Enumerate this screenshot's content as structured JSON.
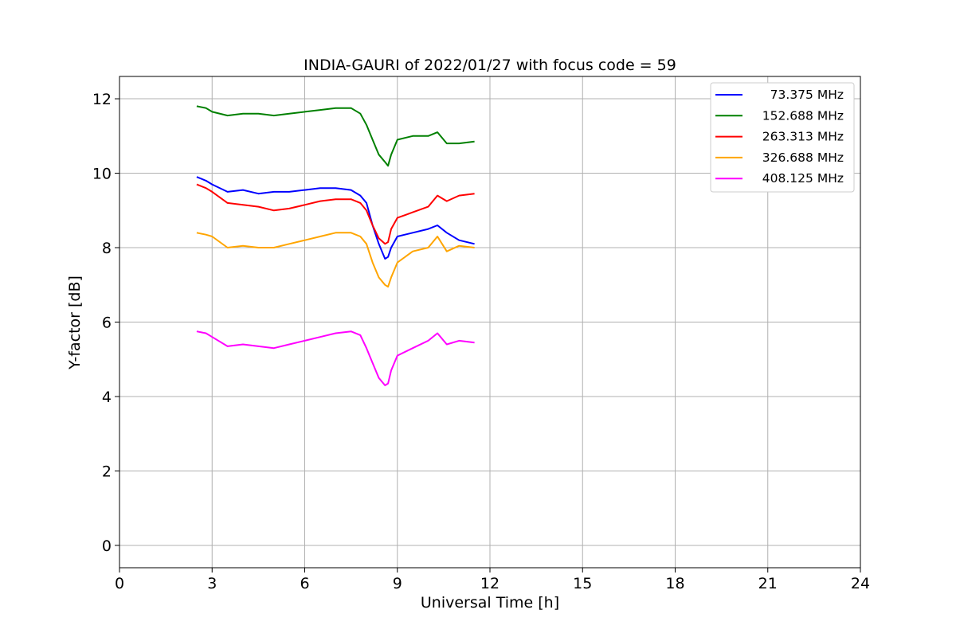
{
  "chart_data": {
    "type": "line",
    "title": "INDIA-GAURI of 2022/01/27 with focus code = 59",
    "xlabel": "Universal Time [h]",
    "ylabel": "Y-factor [dB]",
    "xlim": [
      0,
      24
    ],
    "ylim": [
      -0.6,
      12.6
    ],
    "xticks": [
      0,
      3,
      6,
      9,
      12,
      15,
      18,
      21,
      24
    ],
    "yticks": [
      0,
      2,
      4,
      6,
      8,
      10,
      12
    ],
    "grid": true,
    "legend_position": "top-right",
    "series": [
      {
        "name": "73.375 MHz",
        "color": "#0000ff",
        "x": [
          2.5,
          2.8,
          3.0,
          3.5,
          4.0,
          4.5,
          5.0,
          5.5,
          6.0,
          6.5,
          7.0,
          7.5,
          7.8,
          8.0,
          8.2,
          8.4,
          8.6,
          8.7,
          8.8,
          9.0,
          9.5,
          10.0,
          10.3,
          10.6,
          11.0,
          11.5
        ],
        "y": [
          9.9,
          9.8,
          9.7,
          9.5,
          9.55,
          9.45,
          9.5,
          9.5,
          9.55,
          9.6,
          9.6,
          9.55,
          9.4,
          9.2,
          8.6,
          8.1,
          7.7,
          7.75,
          8.0,
          8.3,
          8.4,
          8.5,
          8.6,
          8.4,
          8.2,
          8.1
        ]
      },
      {
        "name": "152.688 MHz",
        "color": "#008000",
        "x": [
          2.5,
          2.8,
          3.0,
          3.5,
          4.0,
          4.5,
          5.0,
          5.5,
          6.0,
          6.5,
          7.0,
          7.5,
          7.8,
          8.0,
          8.2,
          8.4,
          8.6,
          8.7,
          8.8,
          9.0,
          9.5,
          10.0,
          10.3,
          10.6,
          11.0,
          11.5
        ],
        "y": [
          11.8,
          11.75,
          11.65,
          11.55,
          11.6,
          11.6,
          11.55,
          11.6,
          11.65,
          11.7,
          11.75,
          11.75,
          11.6,
          11.3,
          10.9,
          10.5,
          10.3,
          10.2,
          10.5,
          10.9,
          11.0,
          11.0,
          11.1,
          10.8,
          10.8,
          10.85
        ]
      },
      {
        "name": "263.313 MHz",
        "color": "#ff0000",
        "x": [
          2.5,
          2.8,
          3.0,
          3.5,
          4.0,
          4.5,
          5.0,
          5.5,
          6.0,
          6.5,
          7.0,
          7.5,
          7.8,
          8.0,
          8.2,
          8.4,
          8.6,
          8.7,
          8.8,
          9.0,
          9.5,
          10.0,
          10.3,
          10.6,
          11.0,
          11.5
        ],
        "y": [
          9.7,
          9.6,
          9.5,
          9.2,
          9.15,
          9.1,
          9.0,
          9.05,
          9.15,
          9.25,
          9.3,
          9.3,
          9.2,
          9.0,
          8.6,
          8.25,
          8.1,
          8.15,
          8.5,
          8.8,
          8.95,
          9.1,
          9.4,
          9.25,
          9.4,
          9.45
        ]
      },
      {
        "name": "326.688 MHz",
        "color": "#ffa500",
        "x": [
          2.5,
          2.8,
          3.0,
          3.5,
          4.0,
          4.5,
          5.0,
          5.5,
          6.0,
          6.5,
          7.0,
          7.5,
          7.8,
          8.0,
          8.2,
          8.4,
          8.6,
          8.7,
          8.8,
          9.0,
          9.5,
          10.0,
          10.3,
          10.6,
          11.0,
          11.5
        ],
        "y": [
          8.4,
          8.35,
          8.3,
          8.0,
          8.05,
          8.0,
          8.0,
          8.1,
          8.2,
          8.3,
          8.4,
          8.4,
          8.3,
          8.1,
          7.6,
          7.2,
          7.0,
          6.95,
          7.2,
          7.6,
          7.9,
          8.0,
          8.3,
          7.9,
          8.05,
          8.0
        ]
      },
      {
        "name": "408.125 MHz",
        "color": "#ff00ff",
        "x": [
          2.5,
          2.8,
          3.0,
          3.5,
          4.0,
          4.5,
          5.0,
          5.5,
          6.0,
          6.5,
          7.0,
          7.5,
          7.8,
          8.0,
          8.2,
          8.4,
          8.6,
          8.7,
          8.8,
          9.0,
          9.5,
          10.0,
          10.3,
          10.6,
          11.0,
          11.5
        ],
        "y": [
          5.75,
          5.7,
          5.6,
          5.35,
          5.4,
          5.35,
          5.3,
          5.4,
          5.5,
          5.6,
          5.7,
          5.75,
          5.65,
          5.3,
          4.9,
          4.5,
          4.3,
          4.35,
          4.7,
          5.1,
          5.3,
          5.5,
          5.7,
          5.4,
          5.5,
          5.45
        ]
      }
    ]
  }
}
